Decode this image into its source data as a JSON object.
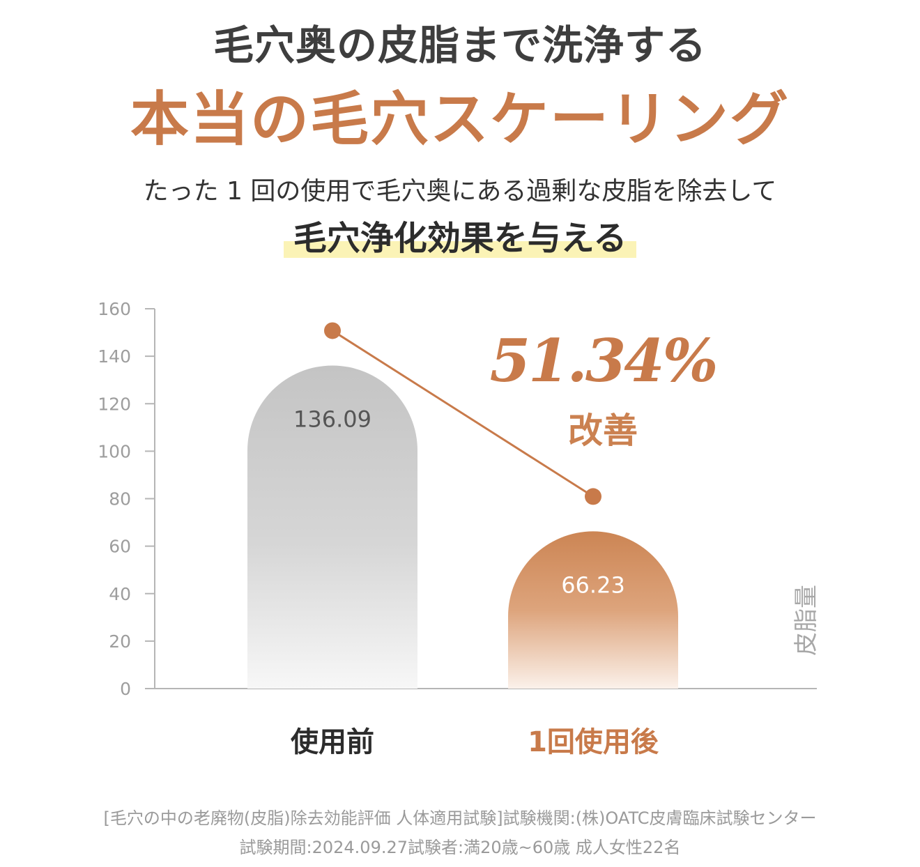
{
  "header": {
    "line1": "毛穴奥の皮脂まで洗浄する",
    "line2": "本当の毛穴スケーリング",
    "line3": "たった 1 回の使用で毛穴奥にある過剰な皮脂を除去して",
    "highlight": "毛穴浄化効果を与える"
  },
  "callout": {
    "percent": "51.34%",
    "label": "改善"
  },
  "footer": {
    "line1": "[毛穴の中の老廃物(皮脂)除去効能評価 人体適用試験]試験機関:(株)OATC皮膚臨床試験センター",
    "line2": "試験期間:2024.09.27試験者:満20歳~60歳 成人女性22名"
  },
  "colors": {
    "accent": "#c87a4a",
    "before_bar": "#c4c4c4",
    "after_bar": "#cc8554"
  },
  "chart_data": {
    "type": "bar",
    "categories": [
      "使用前",
      "1回使用後"
    ],
    "values": [
      136.09,
      66.23
    ],
    "value_labels": [
      "136.09",
      "66.23"
    ],
    "ylabel": "皮脂量",
    "ylim": [
      0,
      160
    ],
    "yticks": [
      0,
      20,
      40,
      60,
      80,
      100,
      120,
      140,
      160
    ],
    "trend_line": true,
    "legend": "none",
    "grid": false
  }
}
